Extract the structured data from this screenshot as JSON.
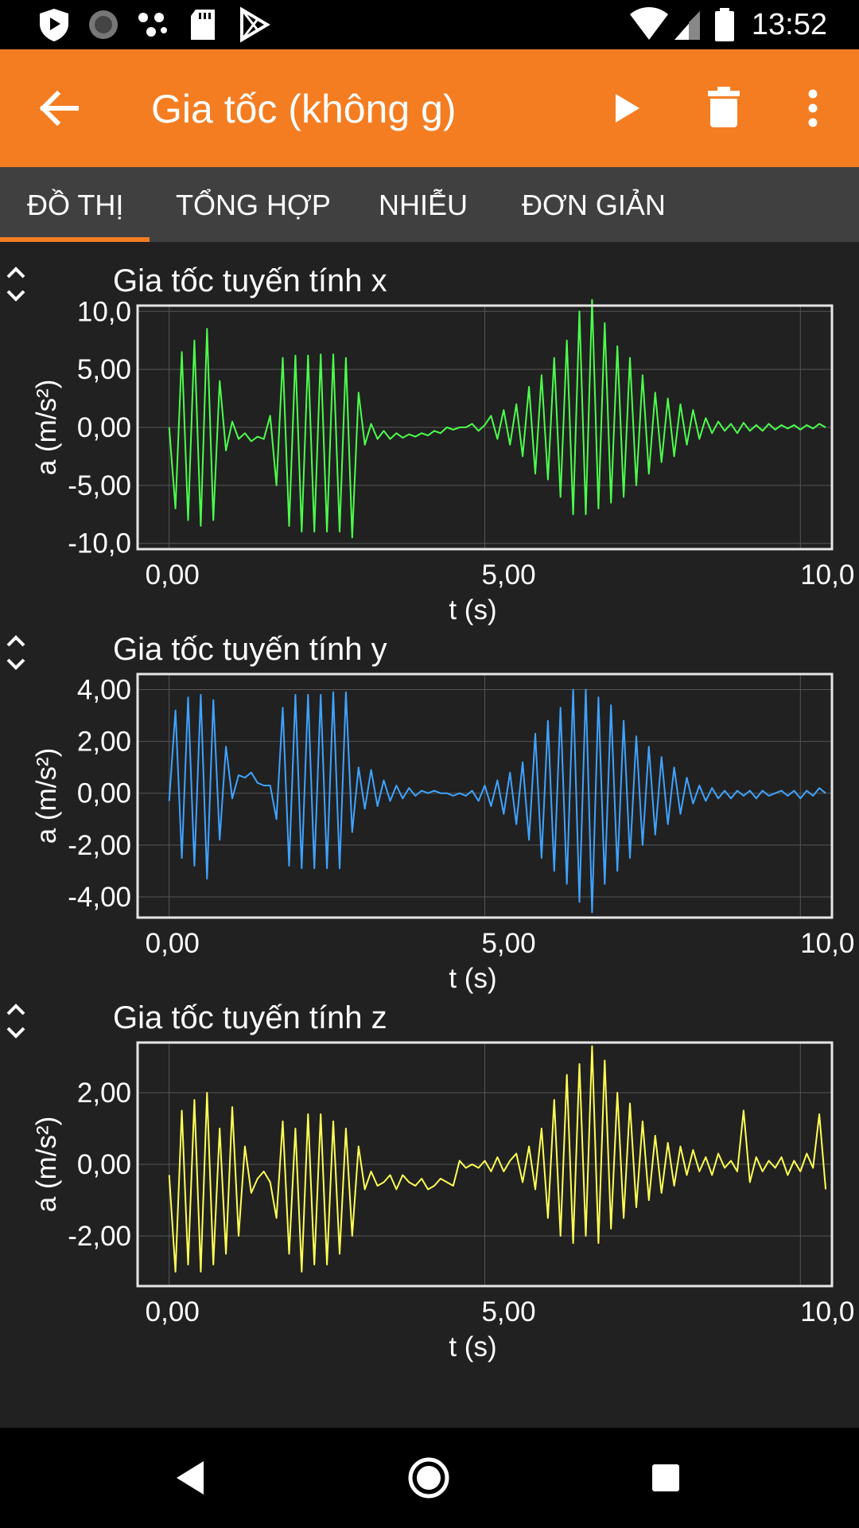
{
  "status_bar": {
    "time": "13:52"
  },
  "toolbar": {
    "title": "Gia tốc (không g)"
  },
  "tabs": [
    {
      "label": "ĐỒ THỊ",
      "selected": true
    },
    {
      "label": "TỔNG HỢP",
      "selected": false
    },
    {
      "label": "NHIỄU",
      "selected": false
    },
    {
      "label": "ĐƠN GIẢN",
      "selected": false
    }
  ],
  "colors": {
    "accent": "#f47d22",
    "x_series": "#4cff4c",
    "y_series": "#3fa3ff",
    "z_series": "#ffff55"
  },
  "chart_data": [
    {
      "type": "line",
      "title": "Gia tốc tuyến tính x",
      "xlabel": "t (s)",
      "ylabel": "a (m/s²)",
      "xlim": [
        -0.5,
        10.5
      ],
      "ylim": [
        -10.5,
        10.5
      ],
      "x_ticks": [
        "0,00",
        "5,00",
        "10,0"
      ],
      "y_ticks": [
        "10,0",
        "5,00",
        "0,00",
        "-5,00",
        "-10,0"
      ],
      "y_tick_values": [
        10,
        5,
        0,
        -5,
        -10
      ],
      "grid": true,
      "color": "#4cff4c",
      "x": [
        0.0,
        0.1,
        0.2,
        0.3,
        0.4,
        0.5,
        0.6,
        0.7,
        0.8,
        0.9,
        1.0,
        1.1,
        1.2,
        1.3,
        1.4,
        1.5,
        1.6,
        1.7,
        1.8,
        1.9,
        2.0,
        2.1,
        2.2,
        2.3,
        2.4,
        2.5,
        2.6,
        2.7,
        2.8,
        2.9,
        3.0,
        3.1,
        3.2,
        3.3,
        3.4,
        3.5,
        3.6,
        3.7,
        3.8,
        3.9,
        4.0,
        4.1,
        4.2,
        4.3,
        4.4,
        4.5,
        4.6,
        4.7,
        4.8,
        4.9,
        5.0,
        5.1,
        5.2,
        5.3,
        5.4,
        5.5,
        5.6,
        5.7,
        5.8,
        5.9,
        6.0,
        6.1,
        6.2,
        6.3,
        6.4,
        6.5,
        6.6,
        6.7,
        6.8,
        6.9,
        7.0,
        7.1,
        7.2,
        7.3,
        7.4,
        7.5,
        7.6,
        7.7,
        7.8,
        7.9,
        8.0,
        8.1,
        8.2,
        8.3,
        8.4,
        8.5,
        8.6,
        8.7,
        8.8,
        8.9,
        9.0,
        9.1,
        9.2,
        9.3,
        9.4,
        9.5,
        9.6,
        9.7,
        9.8,
        9.9,
        10.0,
        10.1,
        10.2,
        10.3,
        10.4
      ],
      "y": [
        0.0,
        -7.0,
        6.5,
        -8.0,
        7.5,
        -8.5,
        8.5,
        -8.0,
        4.0,
        -2.0,
        0.5,
        -1.0,
        -0.5,
        -1.2,
        -0.8,
        -1.0,
        1.0,
        -5.0,
        6.0,
        -8.5,
        6.2,
        -9.0,
        6.2,
        -9.0,
        6.3,
        -9.0,
        6.3,
        -9.0,
        6.0,
        -9.5,
        3.0,
        -1.5,
        0.3,
        -1.0,
        -0.3,
        -1.0,
        -0.5,
        -0.9,
        -0.6,
        -0.8,
        -0.5,
        -0.7,
        -0.3,
        -0.5,
        0.0,
        -0.2,
        0.0,
        0.0,
        0.3,
        -0.3,
        0.2,
        1.0,
        -1.0,
        1.5,
        -1.5,
        2.0,
        -2.5,
        3.5,
        -4.0,
        4.5,
        -4.5,
        6.0,
        -6.0,
        7.5,
        -7.5,
        10.0,
        -7.5,
        11.0,
        -7.0,
        9.0,
        -6.5,
        7.0,
        -6.0,
        6.0,
        -5.0,
        4.5,
        -4.0,
        3.0,
        -3.0,
        2.5,
        -2.5,
        2.0,
        -1.5,
        1.5,
        -1.0,
        0.8,
        -0.5,
        0.5,
        -0.3,
        0.3,
        -0.5,
        0.4,
        -0.3,
        0.2,
        -0.3,
        0.3,
        -0.2,
        0.2,
        -0.1,
        0.2,
        -0.2,
        0.2,
        -0.1,
        0.3,
        0.0
      ]
    },
    {
      "type": "line",
      "title": "Gia tốc tuyến tính y",
      "xlabel": "t (s)",
      "ylabel": "a (m/s²)",
      "xlim": [
        -0.5,
        10.5
      ],
      "ylim": [
        -4.8,
        4.6
      ],
      "x_ticks": [
        "0,00",
        "5,00",
        "10,0"
      ],
      "y_ticks": [
        "4,00",
        "2,00",
        "0,00",
        "-2,00",
        "-4,00"
      ],
      "y_tick_values": [
        4,
        2,
        0,
        -2,
        -4
      ],
      "grid": true,
      "color": "#3fa3ff",
      "x": [
        0.0,
        0.1,
        0.2,
        0.3,
        0.4,
        0.5,
        0.6,
        0.7,
        0.8,
        0.9,
        1.0,
        1.1,
        1.2,
        1.3,
        1.4,
        1.5,
        1.6,
        1.7,
        1.8,
        1.9,
        2.0,
        2.1,
        2.2,
        2.3,
        2.4,
        2.5,
        2.6,
        2.7,
        2.8,
        2.9,
        3.0,
        3.1,
        3.2,
        3.3,
        3.4,
        3.5,
        3.6,
        3.7,
        3.8,
        3.9,
        4.0,
        4.1,
        4.2,
        4.3,
        4.4,
        4.5,
        4.6,
        4.7,
        4.8,
        4.9,
        5.0,
        5.1,
        5.2,
        5.3,
        5.4,
        5.5,
        5.6,
        5.7,
        5.8,
        5.9,
        6.0,
        6.1,
        6.2,
        6.3,
        6.4,
        6.5,
        6.6,
        6.7,
        6.8,
        6.9,
        7.0,
        7.1,
        7.2,
        7.3,
        7.4,
        7.5,
        7.6,
        7.7,
        7.8,
        7.9,
        8.0,
        8.1,
        8.2,
        8.3,
        8.4,
        8.5,
        8.6,
        8.7,
        8.8,
        8.9,
        9.0,
        9.1,
        9.2,
        9.3,
        9.4,
        9.5,
        9.6,
        9.7,
        9.8,
        9.9,
        10.0,
        10.1,
        10.2,
        10.3,
        10.4
      ],
      "y": [
        -0.3,
        3.2,
        -2.5,
        3.7,
        -2.8,
        3.8,
        -3.3,
        3.6,
        -1.8,
        1.8,
        -0.2,
        0.7,
        0.6,
        0.8,
        0.4,
        0.3,
        0.3,
        -1.0,
        3.3,
        -2.8,
        3.8,
        -2.9,
        3.8,
        -2.9,
        3.8,
        -2.9,
        3.9,
        -2.9,
        3.9,
        -1.5,
        1.0,
        -0.6,
        0.9,
        -0.5,
        0.5,
        -0.3,
        0.3,
        -0.2,
        0.2,
        -0.1,
        0.1,
        0.0,
        0.1,
        0.0,
        0.0,
        -0.1,
        0.0,
        -0.1,
        0.1,
        -0.3,
        0.3,
        -0.5,
        0.5,
        -0.8,
        0.8,
        -1.2,
        1.2,
        -1.8,
        2.3,
        -2.5,
        2.8,
        -3.0,
        3.3,
        -3.5,
        4.0,
        -4.2,
        4.0,
        -4.6,
        3.7,
        -3.5,
        3.4,
        -3.0,
        2.8,
        -2.5,
        2.2,
        -2.0,
        1.8,
        -1.6,
        1.4,
        -1.2,
        1.0,
        -0.8,
        0.6,
        -0.4,
        0.3,
        -0.3,
        0.2,
        -0.2,
        0.1,
        -0.2,
        0.1,
        -0.1,
        0.1,
        -0.2,
        0.1,
        -0.1,
        0.0,
        0.1,
        -0.1,
        0.1,
        -0.2,
        0.1,
        -0.1,
        0.2,
        0.0
      ]
    },
    {
      "type": "line",
      "title": "Gia tốc tuyến tính z",
      "xlabel": "t (s)",
      "ylabel": "a (m/s²)",
      "xlim": [
        -0.5,
        10.5
      ],
      "ylim": [
        -3.4,
        3.4
      ],
      "x_ticks": [
        "0,00",
        "5,00",
        "10,0"
      ],
      "y_ticks": [
        "2,00",
        "0,00",
        "-2,00"
      ],
      "y_tick_values": [
        2,
        0,
        -2
      ],
      "grid": true,
      "color": "#ffff55",
      "x": [
        0.0,
        0.1,
        0.2,
        0.3,
        0.4,
        0.5,
        0.6,
        0.7,
        0.8,
        0.9,
        1.0,
        1.1,
        1.2,
        1.3,
        1.4,
        1.5,
        1.6,
        1.7,
        1.8,
        1.9,
        2.0,
        2.1,
        2.2,
        2.3,
        2.4,
        2.5,
        2.6,
        2.7,
        2.8,
        2.9,
        3.0,
        3.1,
        3.2,
        3.3,
        3.4,
        3.5,
        3.6,
        3.7,
        3.8,
        3.9,
        4.0,
        4.1,
        4.2,
        4.3,
        4.4,
        4.5,
        4.6,
        4.7,
        4.8,
        4.9,
        5.0,
        5.1,
        5.2,
        5.3,
        5.4,
        5.5,
        5.6,
        5.7,
        5.8,
        5.9,
        6.0,
        6.1,
        6.2,
        6.3,
        6.4,
        6.5,
        6.6,
        6.7,
        6.8,
        6.9,
        7.0,
        7.1,
        7.2,
        7.3,
        7.4,
        7.5,
        7.6,
        7.7,
        7.8,
        7.9,
        8.0,
        8.1,
        8.2,
        8.3,
        8.4,
        8.5,
        8.6,
        8.7,
        8.8,
        8.9,
        9.0,
        9.1,
        9.2,
        9.3,
        9.4,
        9.5,
        9.6,
        9.7,
        9.8,
        9.9,
        10.0,
        10.1,
        10.2,
        10.3,
        10.4
      ],
      "y": [
        -0.3,
        -3.0,
        1.5,
        -2.8,
        1.8,
        -3.0,
        2.0,
        -2.8,
        1.0,
        -2.5,
        1.6,
        -2.0,
        0.5,
        -0.8,
        -0.4,
        -0.2,
        -0.5,
        -1.5,
        1.2,
        -2.5,
        1.0,
        -3.0,
        1.4,
        -2.8,
        1.4,
        -2.8,
        1.2,
        -2.5,
        1.0,
        -2.0,
        0.5,
        -0.7,
        -0.2,
        -0.6,
        -0.5,
        -0.3,
        -0.7,
        -0.3,
        -0.5,
        -0.6,
        -0.4,
        -0.7,
        -0.6,
        -0.4,
        -0.5,
        -0.6,
        0.1,
        -0.1,
        0.0,
        -0.1,
        0.1,
        -0.2,
        0.2,
        -0.2,
        0.1,
        0.3,
        -0.5,
        0.5,
        -0.7,
        1.0,
        -1.5,
        1.8,
        -2.0,
        2.5,
        -2.2,
        2.8,
        -2.0,
        3.3,
        -2.2,
        2.9,
        -1.8,
        2.0,
        -1.5,
        1.7,
        -1.2,
        1.2,
        -1.0,
        0.8,
        -0.8,
        0.6,
        -0.6,
        0.5,
        -0.3,
        0.4,
        -0.2,
        0.2,
        -0.3,
        0.3,
        -0.1,
        0.1,
        -0.2,
        1.5,
        -0.5,
        0.2,
        -0.2,
        0.1,
        -0.1,
        0.2,
        -0.3,
        0.1,
        -0.2,
        0.3,
        -0.1,
        1.4,
        -0.7
      ]
    }
  ],
  "nav_bar": {
    "back_icon": "triangle-back-icon",
    "home_icon": "circle-home-icon",
    "recents_icon": "square-recents-icon"
  }
}
